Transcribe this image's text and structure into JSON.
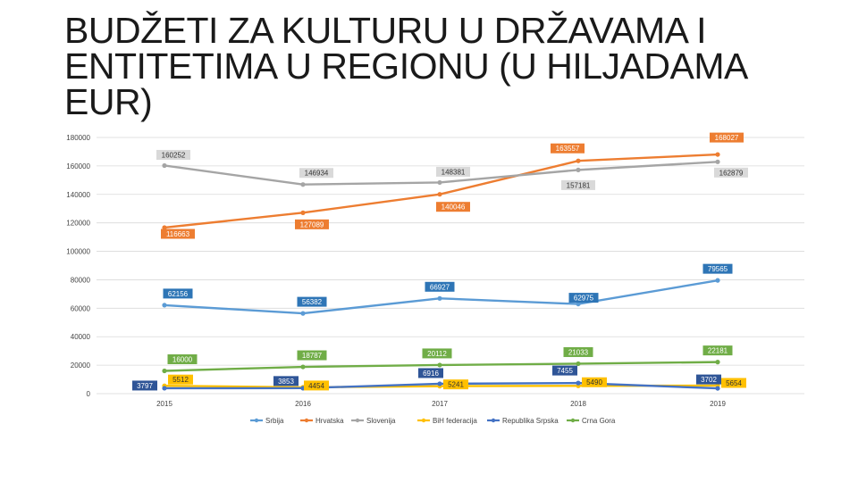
{
  "chart_data": {
    "type": "line",
    "title": "BUDŽETI ZA KULTURU U DRŽAVAMA I ENTITETIMA U REGIONU (U HILJADAMA EUR)",
    "categories": [
      "2015",
      "2016",
      "2017",
      "2018",
      "2019"
    ],
    "y_ticks": [
      "180000",
      "160000",
      "140000",
      "120000",
      "100000",
      "80000",
      "60000",
      "40000",
      "20000",
      "0"
    ],
    "ylim": [
      0,
      180000
    ],
    "grid": true,
    "legend_position": "bottom",
    "series": [
      {
        "name": "Srbija",
        "color": "#5b9bd5",
        "values": [
          62156,
          56382,
          66927,
          62975,
          79565
        ],
        "labels": [
          "62156",
          "56382",
          "66927",
          "62975",
          "79565"
        ],
        "label_style": "box"
      },
      {
        "name": "Hrvatska",
        "color": "#ed7d31",
        "values": [
          116663,
          127089,
          140046,
          163557,
          168027
        ],
        "labels": [
          "116663",
          "127089",
          "140046",
          "163557",
          "168027"
        ],
        "label_style": "box"
      },
      {
        "name": "Slovenija",
        "color": "#a5a5a5",
        "values": [
          160252,
          146934,
          148381,
          157181,
          162879
        ],
        "labels": [
          "160252",
          "146934",
          "148381",
          "157181",
          "162879"
        ],
        "label_style": "box"
      },
      {
        "name": "BiH federacija",
        "color": "#ffc000",
        "values": [
          5512,
          4454,
          5241,
          5490,
          5654
        ],
        "labels": [
          "5512",
          "4454",
          "5241",
          "5490",
          "5654"
        ],
        "label_style": "box"
      },
      {
        "name": "Republika Srpska",
        "color": "#4472c4",
        "values": [
          3797,
          3853,
          6916,
          7455,
          3702
        ],
        "labels": [
          "3797",
          "3853",
          "6916",
          "7455",
          "3702"
        ],
        "label_style": "box"
      },
      {
        "name": "Crna Gora",
        "color": "#70ad47",
        "values": [
          16000,
          18787,
          20112,
          21033,
          22181
        ],
        "labels": [
          "16000",
          "18787",
          "20112",
          "21033",
          "22181"
        ],
        "label_style": "box"
      }
    ]
  }
}
